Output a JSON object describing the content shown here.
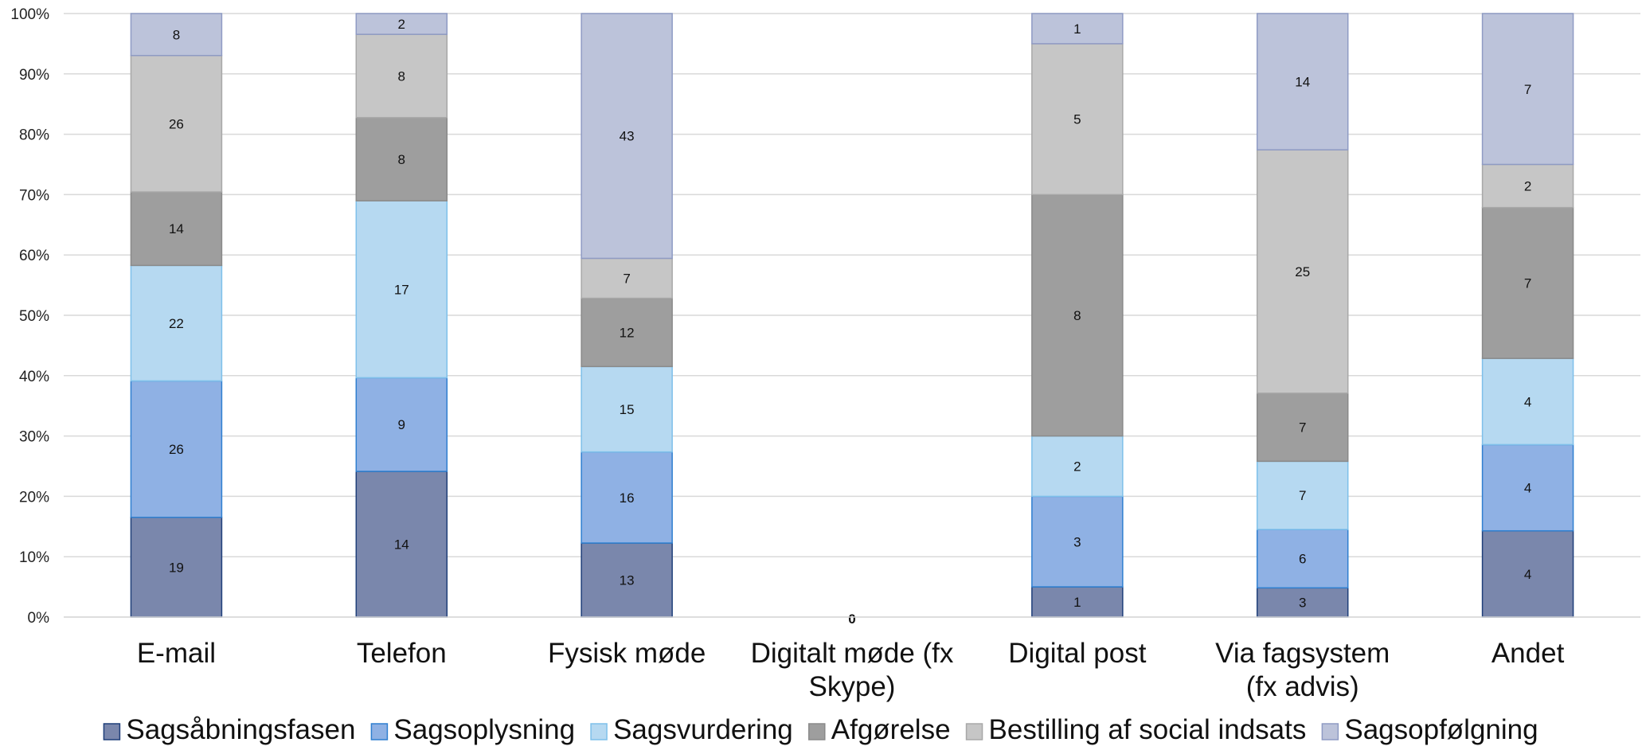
{
  "chart_data": {
    "type": "bar",
    "stacked": true,
    "normalized": true,
    "categories": [
      [
        "E-mail"
      ],
      [
        "Telefon"
      ],
      [
        "Fysisk møde"
      ],
      [
        "Digitalt møde (fx",
        "Skype)"
      ],
      [
        "Digital post"
      ],
      [
        "Via fagsystem",
        "(fx advis)"
      ],
      [
        "Andet"
      ]
    ],
    "series": [
      {
        "name": "Sagsåbningsfasen",
        "values": [
          19,
          14,
          13,
          0,
          1,
          3,
          4
        ],
        "color": "#7a87ac",
        "edge": "#1f3f7a"
      },
      {
        "name": "Sagsoplysning",
        "values": [
          26,
          9,
          16,
          0,
          3,
          6,
          4
        ],
        "color": "#8fb1e4",
        "edge": "#2f7fd0"
      },
      {
        "name": "Sagsvurdering",
        "values": [
          22,
          17,
          15,
          0,
          2,
          7,
          4
        ],
        "color": "#b6d9f1",
        "edge": "#7ec0ea"
      },
      {
        "name": "Afgørelse",
        "values": [
          14,
          8,
          12,
          0,
          8,
          7,
          7
        ],
        "color": "#9e9e9e",
        "edge": "#8a8a8a"
      },
      {
        "name": "Bestilling af social indsats",
        "values": [
          26,
          8,
          7,
          0,
          5,
          25,
          2
        ],
        "color": "#c6c6c6",
        "edge": "#a8a8a8"
      },
      {
        "name": "Sagsopfølgning",
        "values": [
          8,
          2,
          43,
          0,
          1,
          14,
          7
        ],
        "color": "#bcc3da",
        "edge": "#8f9bc4"
      }
    ],
    "zero_label": "0",
    "ylim": [
      0,
      100
    ],
    "yticks": [
      "0%",
      "10%",
      "20%",
      "30%",
      "40%",
      "50%",
      "60%",
      "70%",
      "80%",
      "90%",
      "100%"
    ],
    "grid": true,
    "legend_position": "bottom",
    "title": "",
    "xlabel": "",
    "ylabel": ""
  }
}
